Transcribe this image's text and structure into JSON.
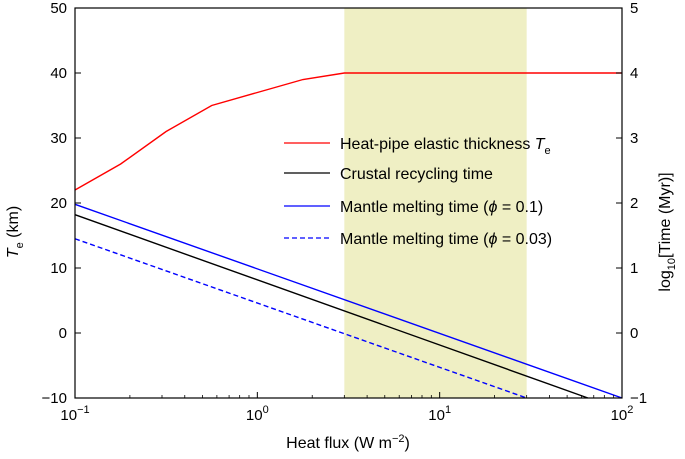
{
  "chart_data": {
    "type": "line",
    "xscale": "log",
    "xlabel": {
      "text": "Heat flux (W m",
      "sup": "−2",
      "tail": ")"
    },
    "ylabel_left": {
      "main": "T",
      "sub": "e",
      "tail": " (km)"
    },
    "ylabel_right": {
      "pre": "log",
      "sub": "10",
      "tail": "[Time (Myr)]"
    },
    "xlim": [
      0.1,
      100
    ],
    "ylim_left": [
      -10,
      50
    ],
    "ylim_right": [
      -1,
      5
    ],
    "x_ticks": [
      {
        "value": 0.1,
        "base": "10",
        "exp": "−1"
      },
      {
        "value": 1,
        "base": "10",
        "exp": "0"
      },
      {
        "value": 10,
        "base": "10",
        "exp": "1"
      },
      {
        "value": 100,
        "base": "10",
        "exp": "2"
      }
    ],
    "y_left_ticks": [
      "−10",
      "0",
      "10",
      "20",
      "30",
      "40",
      "50"
    ],
    "y_right_ticks": [
      "−1",
      "0",
      "1",
      "2",
      "3",
      "4",
      "5"
    ],
    "shaded_region": {
      "x_range": [
        3,
        30
      ],
      "color": "#efefc4"
    },
    "series": [
      {
        "name": "Heat-pipe elastic thickness T_e",
        "legend_main": "Heat-pipe elastic thickness ",
        "legend_symbol": "T",
        "legend_sub": "e",
        "axis": "left",
        "color": "#ff0000",
        "dash": "solid",
        "x": [
          0.1,
          0.178,
          0.316,
          0.562,
          1.0,
          1.78,
          3.0,
          10,
          100
        ],
        "y": [
          22,
          26,
          31,
          35,
          37,
          39,
          40,
          40,
          40
        ]
      },
      {
        "name": "Crustal recycling time",
        "legend_main": "Crustal recycling time",
        "axis": "right",
        "color": "#000000",
        "dash": "solid",
        "x": [
          0.1,
          65
        ],
        "y": [
          1.82,
          -1.0
        ]
      },
      {
        "name": "Mantle melting time (phi = 0.1)",
        "legend_main": "Mantle melting time (",
        "legend_symbol": "ϕ",
        "legend_tail": " = 0.1)",
        "axis": "right",
        "color": "#0000ff",
        "dash": "solid",
        "x": [
          0.1,
          100
        ],
        "y": [
          1.98,
          -1.0
        ]
      },
      {
        "name": "Mantle melting time (phi = 0.03)",
        "legend_main": "Mantle melting time (",
        "legend_symbol": "ϕ",
        "legend_tail": " = 0.03)",
        "axis": "right",
        "color": "#0000ff",
        "dash": "dashed",
        "x": [
          0.1,
          30
        ],
        "y": [
          1.45,
          -1.0
        ]
      }
    ],
    "legend_position": "center-right"
  }
}
